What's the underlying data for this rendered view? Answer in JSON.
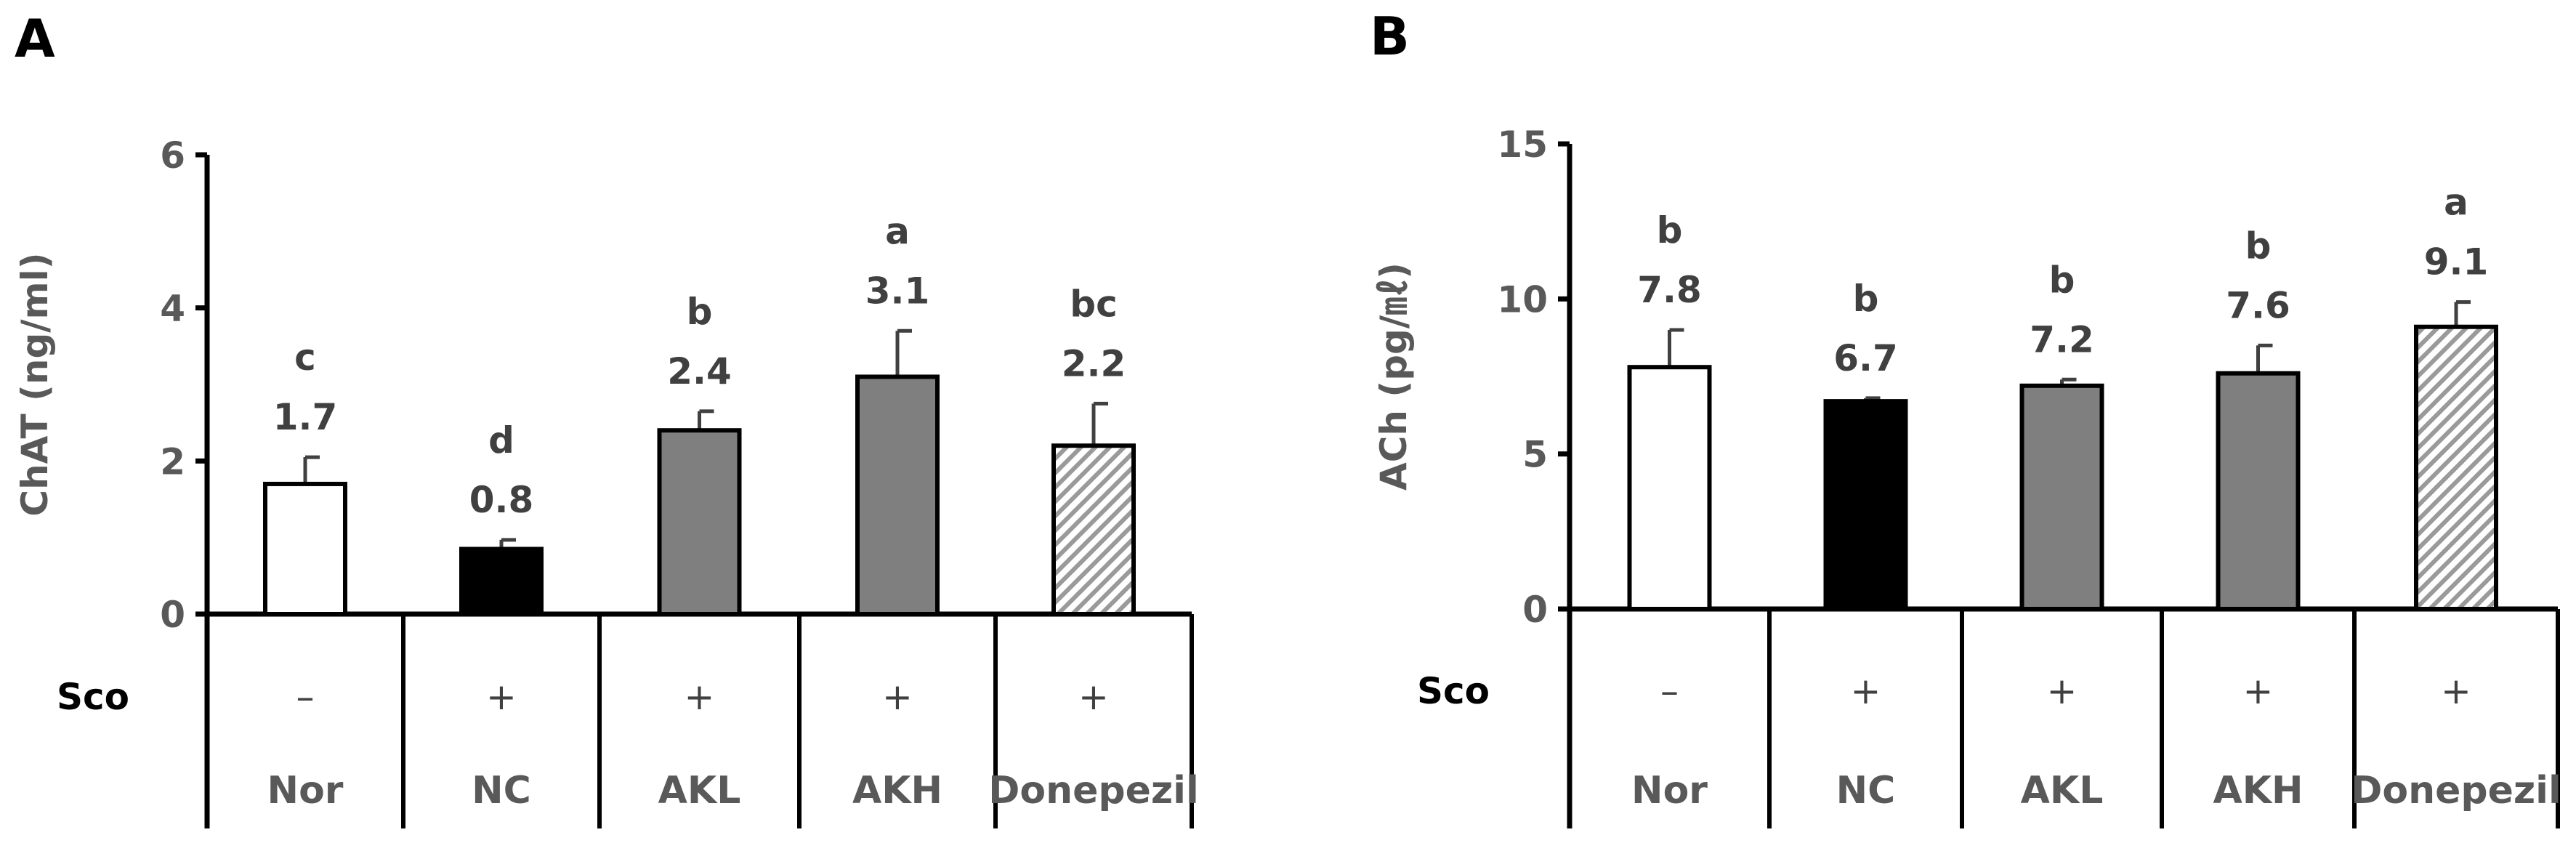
{
  "figure": {
    "sco_row_label": "Sco",
    "colors": {
      "white": "#ffffff",
      "black": "#000000",
      "gray": "#7f7f7f",
      "edge": "#000000",
      "text": "#595959"
    }
  },
  "chart_data": [
    {
      "panel": "A",
      "type": "bar",
      "ylabel": "ChAT (ng/ml)",
      "ylim": [
        0,
        6
      ],
      "yticks": [
        0,
        2,
        4,
        6
      ],
      "categories": [
        "Nor",
        "NC",
        "AKL",
        "AKH",
        "Donepezil"
      ],
      "sco": [
        "–",
        "+",
        "+",
        "+",
        "+"
      ],
      "values": [
        1.7,
        0.85,
        2.4,
        3.1,
        2.2
      ],
      "value_labels": [
        "1.7",
        "0.8",
        "2.4",
        "3.1",
        "2.2"
      ],
      "errors": [
        0.35,
        0.12,
        0.25,
        0.6,
        0.55
      ],
      "significance": [
        "c",
        "d",
        "b",
        "a",
        "bc"
      ],
      "fills": [
        "white",
        "black",
        "gray",
        "gray",
        "hatch"
      ]
    },
    {
      "panel": "B",
      "type": "bar",
      "ylabel": "ACh (pg/㎖)",
      "ylim": [
        0,
        15
      ],
      "yticks": [
        0,
        5,
        10,
        15
      ],
      "categories": [
        "Nor",
        "NC",
        "AKL",
        "AKH",
        "Donepezil"
      ],
      "sco": [
        "–",
        "+",
        "+",
        "+",
        "+"
      ],
      "values": [
        7.8,
        6.7,
        7.2,
        7.6,
        9.1
      ],
      "value_labels": [
        "7.8",
        "6.7",
        "7.2",
        "7.6",
        "9.1"
      ],
      "errors": [
        1.2,
        0.1,
        0.2,
        0.9,
        0.8
      ],
      "significance": [
        "b",
        "b",
        "b",
        "b",
        "a"
      ],
      "fills": [
        "white",
        "black",
        "gray",
        "gray",
        "hatch"
      ]
    }
  ]
}
